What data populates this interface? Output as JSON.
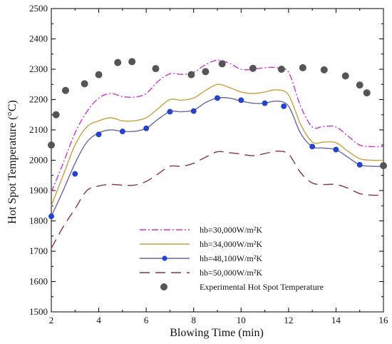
{
  "chart_data": {
    "type": "line",
    "xlabel": "Blowing Time (min)",
    "ylabel": "Hot Spot Temperature (°C)",
    "xlim": [
      2,
      16
    ],
    "ylim": [
      1500,
      2500
    ],
    "xticks": [
      2,
      4,
      6,
      8,
      10,
      12,
      14,
      16
    ],
    "yticks": [
      1500,
      1600,
      1700,
      1800,
      1900,
      2000,
      2100,
      2200,
      2300,
      2400,
      2500
    ],
    "grid": false,
    "legend_position": "bottom-center",
    "series": [
      {
        "name": "hb=30,000W/m²K",
        "color": "#cc33cc",
        "style": "dash-dot",
        "x": [
          2,
          2.5,
          3,
          3.5,
          4,
          4.5,
          5,
          5.5,
          6,
          6.5,
          7,
          7.5,
          8,
          8.5,
          9,
          9.5,
          10,
          10.5,
          11,
          11.5,
          12,
          12.5,
          13,
          13.5,
          14,
          14.5,
          15,
          15.5,
          16
        ],
        "y": [
          1895,
          1990,
          2090,
          2160,
          2205,
          2220,
          2210,
          2208,
          2220,
          2260,
          2285,
          2283,
          2290,
          2315,
          2330,
          2320,
          2300,
          2300,
          2305,
          2305,
          2290,
          2180,
          2110,
          2112,
          2110,
          2080,
          2050,
          2045,
          2045
        ]
      },
      {
        "name": "hb=34,000W/m²K",
        "color": "#c8a040",
        "style": "solid",
        "x": [
          2,
          2.5,
          3,
          3.5,
          4,
          4.5,
          5,
          5.5,
          6,
          6.5,
          7,
          7.5,
          8,
          8.5,
          9,
          9.5,
          10,
          10.5,
          11,
          11.5,
          12,
          12.5,
          13,
          13.5,
          14,
          14.5,
          15,
          15.5,
          16
        ],
        "y": [
          1850,
          1950,
          2050,
          2110,
          2130,
          2140,
          2130,
          2130,
          2140,
          2170,
          2200,
          2198,
          2205,
          2230,
          2250,
          2240,
          2225,
          2220,
          2225,
          2232,
          2215,
          2120,
          2060,
          2060,
          2058,
          2030,
          2005,
          2000,
          2000
        ]
      },
      {
        "name": "hb=48,100W/m²K",
        "color": "#6666aa",
        "marker_color": "#2244dd",
        "style": "solid-marker",
        "x": [
          2,
          2.5,
          3,
          3.5,
          4,
          4.5,
          5,
          5.5,
          6,
          6.5,
          7,
          7.5,
          8,
          8.5,
          9,
          9.5,
          10,
          10.5,
          11,
          11.5,
          12,
          12.5,
          13,
          13.5,
          14,
          14.5,
          15,
          15.5,
          16
        ],
        "y": [
          1815,
          1900,
          1990,
          2060,
          2090,
          2100,
          2095,
          2095,
          2105,
          2135,
          2160,
          2160,
          2165,
          2190,
          2205,
          2205,
          2195,
          2188,
          2188,
          2195,
          2178,
          2090,
          2045,
          2040,
          2035,
          2010,
          1985,
          1980,
          1980
        ],
        "markers_x": [
          2,
          3,
          4,
          5,
          6,
          7,
          8,
          9,
          10,
          11,
          11.8,
          13,
          14,
          15,
          16
        ],
        "markers_y": [
          1815,
          1955,
          2085,
          2095,
          2105,
          2160,
          2162,
          2205,
          2198,
          2188,
          2178,
          2045,
          2035,
          1985,
          1980
        ]
      },
      {
        "name": "hb=50,000W/m²K",
        "color": "#883344",
        "style": "long-dash",
        "x": [
          2,
          2.5,
          3,
          3.5,
          4,
          4.5,
          5,
          5.5,
          6,
          6.5,
          7,
          7.5,
          8,
          8.5,
          9,
          9.5,
          10,
          10.5,
          11,
          11.5,
          12,
          12.5,
          13,
          13.5,
          14,
          14.5,
          15,
          15.5,
          16
        ],
        "y": [
          1710,
          1780,
          1840,
          1900,
          1915,
          1920,
          1918,
          1918,
          1930,
          1955,
          1980,
          1980,
          1990,
          2010,
          2028,
          2025,
          2020,
          2015,
          2022,
          2030,
          2020,
          1960,
          1925,
          1920,
          1920,
          1908,
          1890,
          1885,
          1885
        ]
      },
      {
        "name": "Experimental Hot Spot Temperature",
        "color": "#555555",
        "style": "scatter",
        "x": [
          2.0,
          2.2,
          2.6,
          3.4,
          4.0,
          4.8,
          5.4,
          6.4,
          7.9,
          8.5,
          9.2,
          10.5,
          11.7,
          12.6,
          13.5,
          14.4,
          15.0,
          15.3,
          16.0
        ],
        "y": [
          2050,
          2150,
          2230,
          2252,
          2282,
          2322,
          2325,
          2302,
          2282,
          2292,
          2318,
          2303,
          2300,
          2305,
          2298,
          2278,
          2248,
          2222,
          1982
        ]
      }
    ]
  }
}
